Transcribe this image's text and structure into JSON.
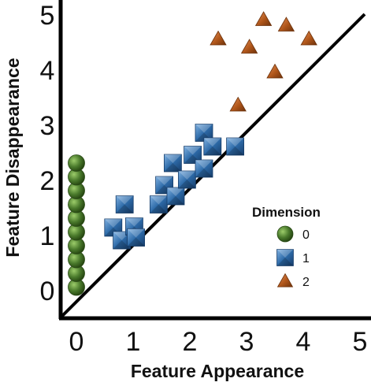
{
  "chart_data": {
    "type": "scatter",
    "xlabel": "Feature Appearance",
    "ylabel": "Feature Disappearance",
    "xlim": [
      0,
      5
    ],
    "ylim": [
      0,
      5
    ],
    "x_ticks": [
      "0",
      "1",
      "2",
      "3",
      "4",
      "5"
    ],
    "y_ticks": [
      "0",
      "1",
      "2",
      "3",
      "4",
      "5"
    ],
    "grid": false,
    "diagonal_line": true,
    "legend": {
      "title": "Dimension",
      "placement": "right"
    },
    "series": [
      {
        "name": "0",
        "marker": "circle",
        "color": "#4a7a2c",
        "points": [
          [
            0.0,
            0.05
          ],
          [
            0.0,
            0.3
          ],
          [
            0.0,
            0.55
          ],
          [
            0.0,
            0.8
          ],
          [
            0.0,
            1.05
          ],
          [
            0.0,
            1.3
          ],
          [
            0.0,
            1.55
          ],
          [
            0.0,
            1.8
          ],
          [
            0.0,
            2.05
          ],
          [
            0.0,
            2.3
          ]
        ]
      },
      {
        "name": "1",
        "marker": "square",
        "color": "#2d6aa8",
        "points": [
          [
            0.65,
            1.13
          ],
          [
            0.8,
            0.9
          ],
          [
            0.85,
            1.55
          ],
          [
            1.02,
            1.15
          ],
          [
            1.05,
            0.95
          ],
          [
            1.45,
            1.55
          ],
          [
            1.55,
            1.9
          ],
          [
            1.75,
            1.7
          ],
          [
            1.7,
            2.3
          ],
          [
            1.95,
            2.0
          ],
          [
            2.05,
            2.45
          ],
          [
            2.25,
            2.2
          ],
          [
            2.25,
            2.85
          ],
          [
            2.4,
            2.6
          ],
          [
            2.8,
            2.6
          ]
        ]
      },
      {
        "name": "2",
        "marker": "triangle",
        "color": "#b0561a",
        "points": [
          [
            2.5,
            4.55
          ],
          [
            2.85,
            3.35
          ],
          [
            3.05,
            4.4
          ],
          [
            3.3,
            4.9
          ],
          [
            3.5,
            3.95
          ],
          [
            3.7,
            4.8
          ],
          [
            4.1,
            4.55
          ]
        ]
      }
    ]
  }
}
